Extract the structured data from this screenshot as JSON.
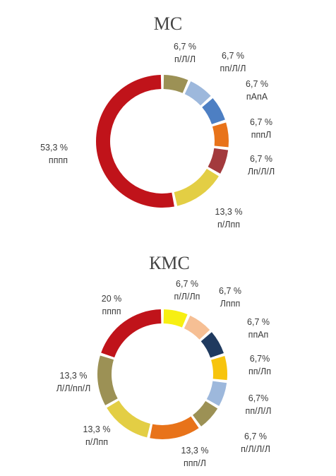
{
  "chart_data": [
    {
      "type": "pie",
      "donut": true,
      "title": "МС",
      "slices": [
        {
          "value": 6.7,
          "pct_label": "6,7 %",
          "name": "п/Л/Л",
          "color": "#9c9155"
        },
        {
          "value": 6.7,
          "pct_label": "6,7 %",
          "name": "пп/Л/Л",
          "color": "#9db8dc"
        },
        {
          "value": 6.7,
          "pct_label": "6,7 %",
          "name": "пАпА",
          "color": "#4d7fc3"
        },
        {
          "value": 6.7,
          "pct_label": "6,7 %",
          "name": "пппЛ",
          "color": "#e8731a"
        },
        {
          "value": 6.7,
          "pct_label": "6,7 %",
          "name": "Лп/Л/Л",
          "color": "#a33a3d"
        },
        {
          "value": 13.3,
          "pct_label": "13,3 %",
          "name": "п/Лпп",
          "color": "#e3ce44"
        },
        {
          "value": 53.3,
          "pct_label": "53,3 %",
          "name": "пппп",
          "color": "#c0131a"
        }
      ]
    },
    {
      "type": "pie",
      "donut": true,
      "title": "КМС",
      "slices": [
        {
          "value": 6.7,
          "pct_label": "6,7 %",
          "name": "п/Л/Лп",
          "color": "#f7ef12"
        },
        {
          "value": 6.7,
          "pct_label": "6,7 %",
          "name": "Лппп",
          "color": "#f6bf94"
        },
        {
          "value": 6.7,
          "pct_label": "6,7 %",
          "name": "ппАп",
          "color": "#1f3a5f"
        },
        {
          "value": 6.7,
          "pct_label": "6,7%",
          "name": "пп/Лп",
          "color": "#f7c40d"
        },
        {
          "value": 6.7,
          "pct_label": "6,7%",
          "name": "пп/Л/Л",
          "color": "#9db8dc"
        },
        {
          "value": 6.7,
          "pct_label": "6,7 %",
          "name": "п/Л/Л/Л",
          "color": "#9c9155"
        },
        {
          "value": 13.3,
          "pct_label": "13,3 %",
          "name": "ппп/Л",
          "color": "#e8731a"
        },
        {
          "value": 13.3,
          "pct_label": "13,3 %",
          "name": "п/Лпп",
          "color": "#e3ce44"
        },
        {
          "value": 13.3,
          "pct_label": "13,3 %",
          "name": "Л/Л/пп/Л",
          "color": "#9c9155"
        },
        {
          "value": 20,
          "pct_label": "20 %",
          "name": "пппп",
          "color": "#c0131a"
        }
      ]
    }
  ]
}
